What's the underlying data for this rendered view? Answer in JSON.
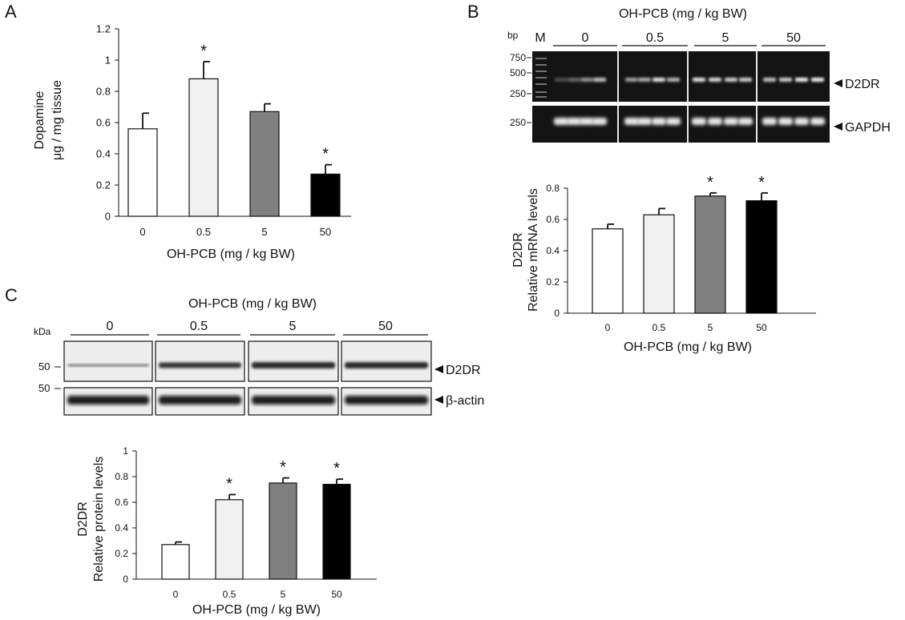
{
  "chart_data": [
    {
      "panel_label": "A",
      "type": "bar",
      "categories": [
        "0",
        "0.5",
        "5",
        "50"
      ],
      "values": [
        0.56,
        0.88,
        0.67,
        0.27
      ],
      "errors": [
        0.1,
        0.11,
        0.05,
        0.06
      ],
      "significant": [
        "",
        "*",
        "",
        "*"
      ],
      "bar_colors": [
        "#ffffff",
        "#f0f0f0",
        "#808080",
        "#000000"
      ],
      "ylabel_line1": "Dopamine",
      "ylabel_line2": "μg / mg tissue",
      "xlabel": "OH-PCB  (mg / kg BW)",
      "ylim": [
        0,
        1.2
      ],
      "yticks": [
        "0",
        "0.2",
        "0.4",
        "0.6",
        "0.8",
        "1",
        "1.2"
      ]
    },
    {
      "panel_label": "B",
      "type": "bar",
      "categories": [
        "0",
        "0.5",
        "5",
        "50"
      ],
      "values": [
        0.54,
        0.63,
        0.75,
        0.72
      ],
      "errors": [
        0.03,
        0.04,
        0.02,
        0.05
      ],
      "significant": [
        "",
        "",
        "*",
        "*"
      ],
      "bar_colors": [
        "#ffffff",
        "#f0f0f0",
        "#808080",
        "#000000"
      ],
      "ylabel_line1": "D2DR",
      "ylabel_line2": "Relative mRNA levels",
      "xlabel": "OH-PCB  (mg / kg BW)",
      "ylim": [
        0,
        0.8
      ],
      "yticks": [
        "0",
        "0.2",
        "0.4",
        "0.6",
        "0.8"
      ]
    },
    {
      "panel_label": "C",
      "type": "bar",
      "categories": [
        "0",
        "0.5",
        "5",
        "50"
      ],
      "values": [
        0.27,
        0.62,
        0.75,
        0.74
      ],
      "errors": [
        0.02,
        0.04,
        0.04,
        0.04
      ],
      "significant": [
        "",
        "*",
        "*",
        "*"
      ],
      "bar_colors": [
        "#ffffff",
        "#f0f0f0",
        "#808080",
        "#000000"
      ],
      "ylabel_line1": "D2DR",
      "ylabel_line2": "Relative protein  levels",
      "xlabel": "OH-PCB  (mg / kg BW)",
      "ylim": [
        0,
        1
      ],
      "yticks": [
        "0",
        "0.2",
        "0.4",
        "0.6",
        "0.8",
        "1"
      ]
    }
  ],
  "gel_b": {
    "title": "OH-PCB  (mg / kg BW)",
    "size_unit": "bp",
    "marker_label": "M",
    "groups": [
      "0",
      "0.5",
      "5",
      "50"
    ],
    "size_labels_top": [
      "750",
      "500",
      "250"
    ],
    "size_label_bottom": "250",
    "band_top": "D2DR",
    "band_bottom": "GAPDH"
  },
  "blot_c": {
    "title": "OH-PCB  (mg / kg BW)",
    "size_unit": "kDa",
    "groups": [
      "0",
      "0.5",
      "5",
      "50"
    ],
    "size_label_top": "50",
    "size_label_bottom": "50",
    "band_top": "D2DR",
    "band_bottom": "β-actin"
  }
}
